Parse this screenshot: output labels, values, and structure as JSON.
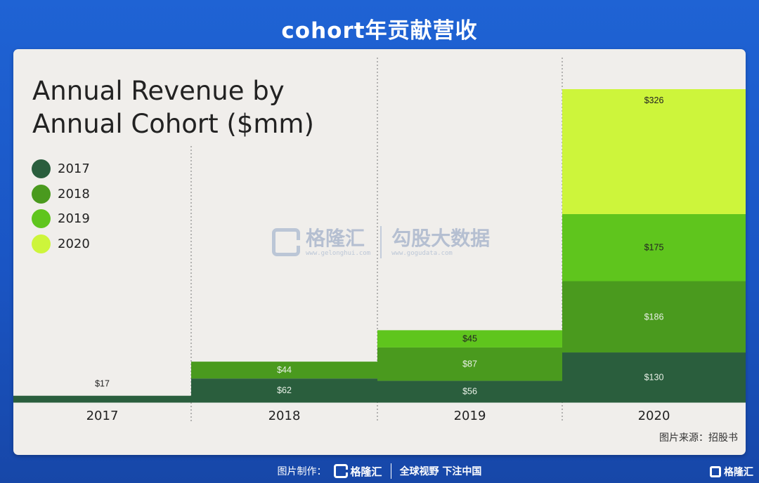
{
  "header": {
    "title": "cohort年贡献营收"
  },
  "chart_data": {
    "type": "bar",
    "stacked": true,
    "title": "Annual Revenue by Annual Cohort ($mm)",
    "title_lines": [
      "Annual Revenue by",
      "Annual Cohort ($mm)"
    ],
    "categories": [
      "2017",
      "2018",
      "2019",
      "2020"
    ],
    "series": [
      {
        "name": "2017",
        "color": "#2a5e3d",
        "values": [
          17,
          62,
          56,
          130
        ],
        "labels": [
          "$17",
          "$62",
          "$56",
          "$130"
        ]
      },
      {
        "name": "2018",
        "color": "#4a9a1e",
        "values": [
          0,
          44,
          87,
          186
        ],
        "labels": [
          "",
          "$44",
          "$87",
          "$186"
        ]
      },
      {
        "name": "2019",
        "color": "#5fc51d",
        "values": [
          0,
          0,
          45,
          175
        ],
        "labels": [
          "",
          "",
          "$45",
          "$175"
        ]
      },
      {
        "name": "2020",
        "color": "#cdf53b",
        "values": [
          0,
          0,
          0,
          326
        ],
        "labels": [
          "",
          "",
          "",
          "$326"
        ]
      }
    ],
    "ylim": [
      0,
      817
    ],
    "grid": false,
    "legend_position": "top-left"
  },
  "legend": [
    {
      "label": "2017",
      "color": "#2a5e3d"
    },
    {
      "label": "2018",
      "color": "#4a9a1e"
    },
    {
      "label": "2019",
      "color": "#5fc51d"
    },
    {
      "label": "2020",
      "color": "#cdf53b"
    }
  ],
  "source": "图片来源：招股书",
  "watermark": {
    "brand": "格隆汇",
    "brand_url": "www.gelonghui.com",
    "data_brand": "勾股大数据",
    "data_url": "www.gogudata.com"
  },
  "footer": {
    "label": "图片制作：",
    "brand": "格隆汇",
    "slogan": "全球视野 下注中国"
  },
  "corner_logo": "格隆汇"
}
